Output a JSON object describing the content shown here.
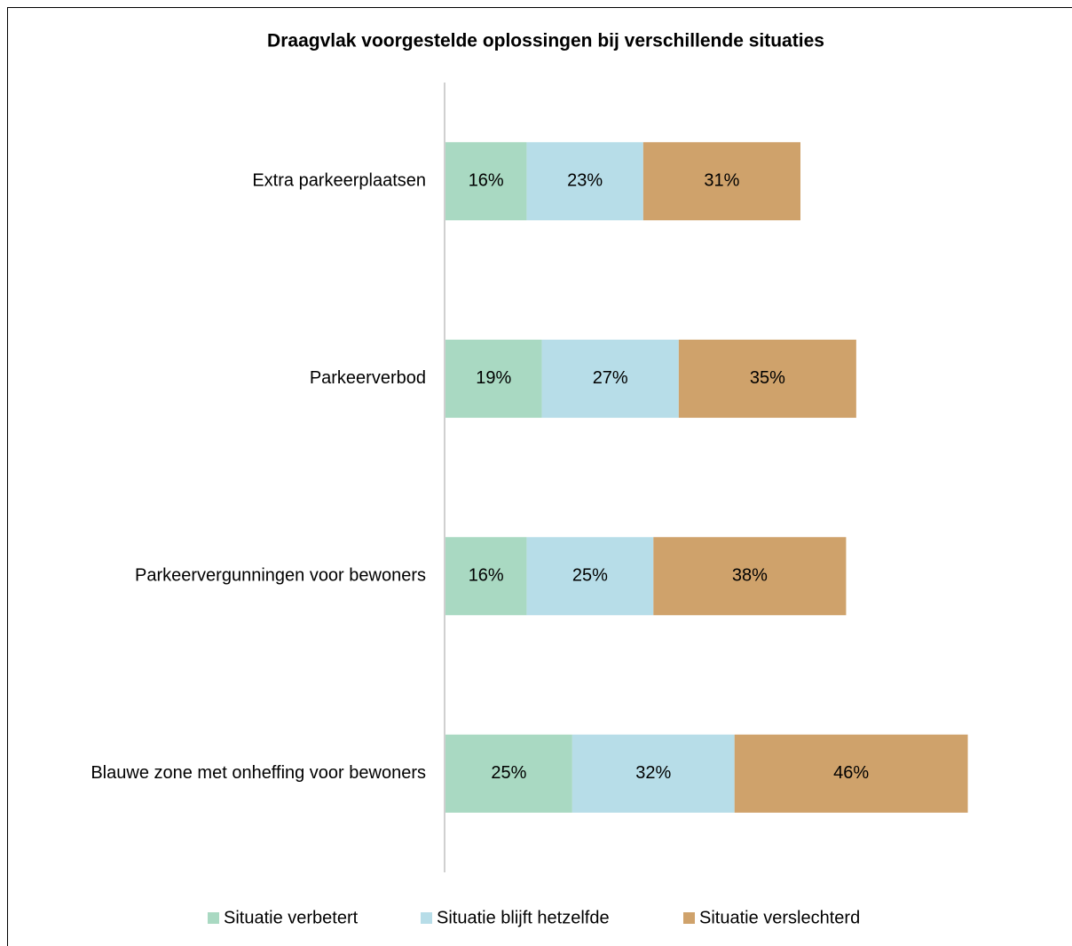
{
  "chart_data": {
    "type": "stacked-barh",
    "title": "Draagvlak voorgestelde oplossingen bij verschillende situaties",
    "categories": [
      "Extra parkeerplaatsen",
      "Parkeerverbod",
      "Parkeervergunningen voor bewoners",
      "Blauwe zone met onheffing voor bewoners"
    ],
    "series": [
      {
        "name": "Situatie verbetert",
        "color": "#a9d9c2",
        "values": [
          16,
          19,
          16,
          25
        ],
        "value_labels": [
          "16%",
          "19%",
          "16%",
          "25%"
        ]
      },
      {
        "name": "Situatie blijft hetzelfde",
        "color": "#b7dde8",
        "values": [
          23,
          27,
          25,
          32
        ],
        "value_labels": [
          "23%",
          "27%",
          "25%",
          "32%"
        ]
      },
      {
        "name": "Situatie verslechterd",
        "color": "#cfa26b",
        "values": [
          31,
          35,
          38,
          46
        ],
        "value_labels": [
          "31%",
          "35%",
          "38%",
          "46%"
        ]
      }
    ],
    "xlim": [
      0,
      105
    ],
    "legend": "bottom"
  }
}
